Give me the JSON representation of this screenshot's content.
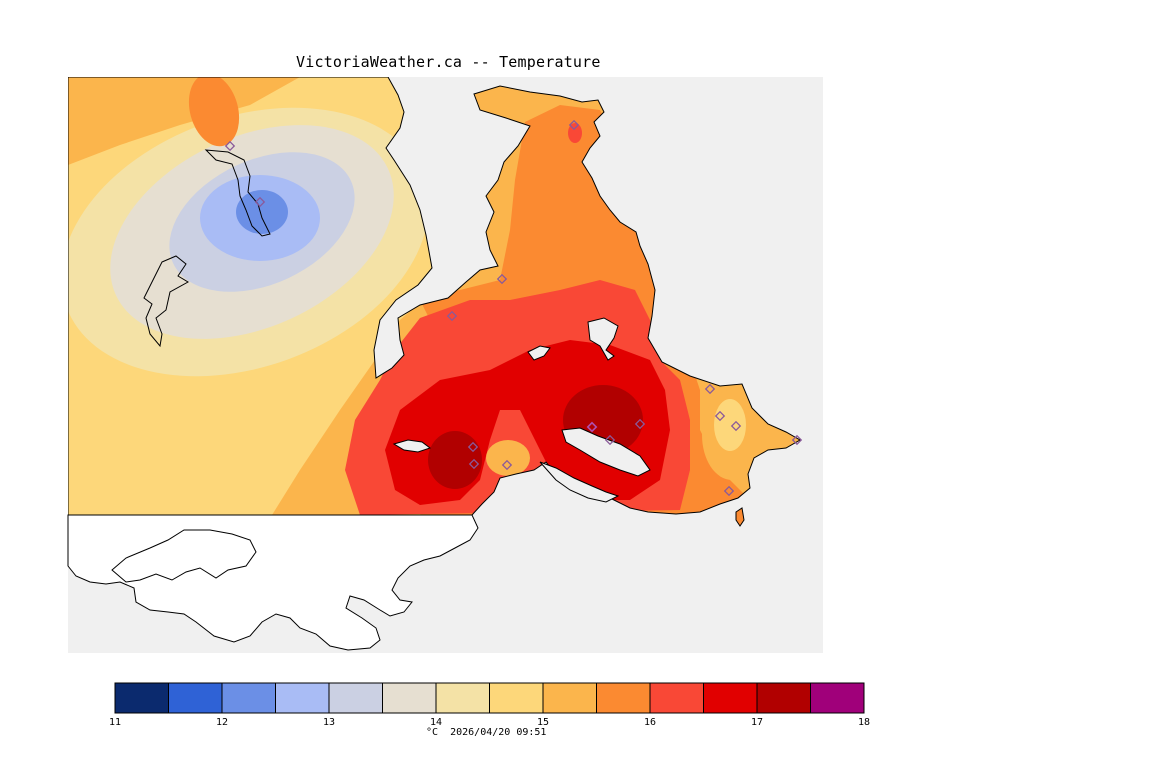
{
  "title": "VictoriaWeather.ca -- Temperature",
  "legend": {
    "unit": "°C",
    "timestamp": "2026/04/20 09:51",
    "tick_labels": [
      "11",
      "12",
      "13",
      "14",
      "15",
      "16",
      "17",
      "18"
    ],
    "colors": [
      "#0b2a6e",
      "#2f62d6",
      "#6b8fe6",
      "#a9bcf5",
      "#cbd0e3",
      "#e6dfd1",
      "#f4e2a6",
      "#fdd77a",
      "#fbb54c",
      "#fb8a31",
      "#f94836",
      "#e10000",
      "#b10000",
      "#a0007a"
    ]
  },
  "colors": {
    "water": "#f0f0f0",
    "coast": "#000000",
    "station": "#8a5a9a"
  }
}
